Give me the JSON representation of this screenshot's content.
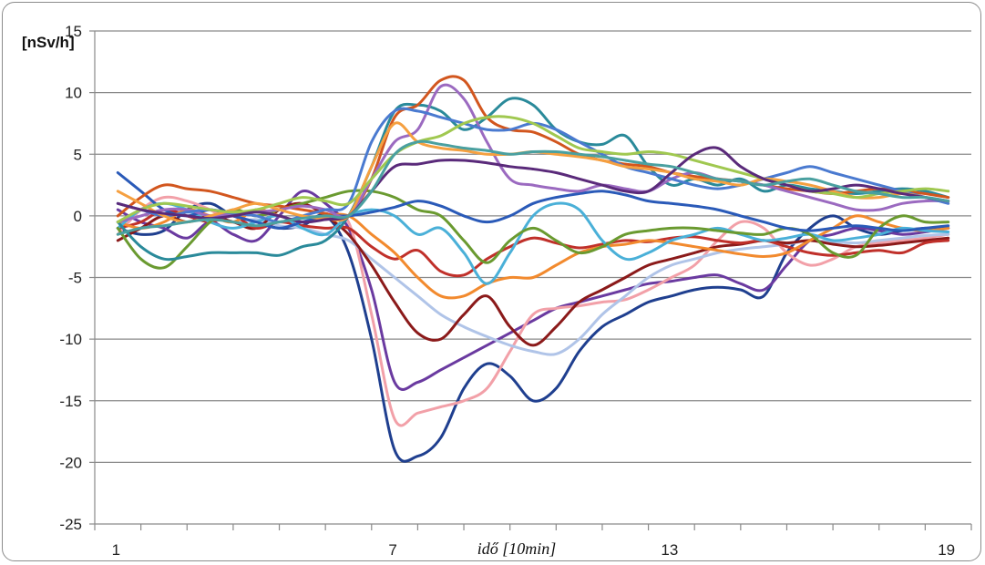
{
  "chart_data": {
    "type": "line",
    "title": "",
    "ylabel": "[nSv/h]",
    "xlabel": "idő [10min]",
    "ylim": [
      -25,
      15
    ],
    "yticks": [
      15,
      10,
      5,
      0,
      -5,
      -10,
      -15,
      -20,
      -25
    ],
    "xlim": [
      1,
      19
    ],
    "xtick_labels": [
      {
        "x": 1,
        "label": "1"
      },
      {
        "x": 7,
        "label": "7"
      },
      {
        "x": 13,
        "label": "13"
      },
      {
        "x": 19,
        "label": "19"
      }
    ],
    "grid": true,
    "legend": "none",
    "x": [
      1,
      1.5,
      2,
      2.5,
      3,
      3.5,
      4,
      4.5,
      5,
      5.5,
      6,
      6.5,
      7,
      7.5,
      8,
      8.5,
      9,
      9.5,
      10,
      10.5,
      11,
      11.5,
      12,
      12.5,
      13,
      13.5,
      14,
      14.5,
      15,
      15.5,
      16,
      16.5,
      17,
      17.5,
      18,
      18.5,
      19
    ],
    "series": [
      {
        "color": "#1f3f8f",
        "values": [
          -1,
          -1.5,
          -1.2,
          0.5,
          1,
          0,
          -0.5,
          -1,
          -0.8,
          0,
          -3,
          -10,
          -19,
          -19.5,
          -18,
          -14,
          -12,
          -13,
          -15,
          -14,
          -11,
          -9,
          -8,
          -7,
          -6.5,
          -6,
          -5.8,
          -6,
          -6.5,
          -3,
          -1,
          0,
          -1,
          -1.5,
          -1.2,
          -1,
          -1
        ]
      },
      {
        "color": "#6a3aa0",
        "values": [
          0.5,
          -0.5,
          -1,
          -1.8,
          -0.5,
          -1.5,
          -2,
          0,
          2,
          1,
          -1,
          -6,
          -13.5,
          -13.5,
          -12.5,
          -11.5,
          -10.5,
          -9.5,
          -8.5,
          -7.5,
          -7,
          -6.5,
          -6,
          -5.5,
          -5.3,
          -5,
          -4.8,
          -5.5,
          -6,
          -4,
          -2,
          -1.5,
          -1,
          -1.2,
          -1.5,
          -1.3,
          -1
        ]
      },
      {
        "color": "#f2a0a8",
        "values": [
          -1.5,
          0.5,
          1.5,
          1.2,
          0.5,
          -0.5,
          0.5,
          0,
          -0.5,
          -0.3,
          -0.5,
          -8,
          -16.5,
          -16,
          -15.5,
          -15,
          -14,
          -11,
          -8,
          -7.5,
          -7.3,
          -7,
          -6.8,
          -6,
          -5,
          -4,
          -2,
          -0.5,
          -1,
          -3,
          -4,
          -3.5,
          -2.5,
          -2.2,
          -2,
          -1.8,
          -1.5
        ]
      },
      {
        "color": "#b0c4e8",
        "values": [
          -0.5,
          0,
          0.5,
          0.3,
          0,
          -0.5,
          -0.3,
          -0.8,
          -1,
          -1.5,
          -2,
          -3.5,
          -5,
          -6.5,
          -8,
          -9,
          -9.8,
          -10.5,
          -11,
          -11.2,
          -10,
          -8,
          -6.5,
          -5,
          -4,
          -3.5,
          -3,
          -2.7,
          -2.5,
          -2.3,
          -2,
          -2.1,
          -2.2,
          -2,
          -1.8,
          -1.6,
          -1.5
        ]
      },
      {
        "color": "#8b1a1a",
        "values": [
          -2,
          -1,
          0,
          -0.5,
          0,
          -0.5,
          -1,
          0.5,
          1,
          0,
          -1.5,
          -4,
          -7,
          -9.5,
          -10,
          -8,
          -6.5,
          -9,
          -10.5,
          -9,
          -7,
          -6,
          -5,
          -4,
          -3.5,
          -3,
          -2.5,
          -2.3,
          -2,
          -2.2,
          -2,
          -2.3,
          -2.5,
          -2.4,
          -2.2,
          -2,
          -1.8
        ]
      },
      {
        "color": "#c0302a",
        "values": [
          -1,
          -0.5,
          0.5,
          0,
          -0.5,
          0,
          -1,
          -0.5,
          -0.8,
          -1,
          -1,
          -2.5,
          -3.5,
          -2.8,
          -4.5,
          -4.8,
          -3.5,
          -2.5,
          -1.8,
          -2.2,
          -2.6,
          -2.3,
          -2,
          -2.1,
          -1.8,
          -1.7,
          -2,
          -2.2,
          -2,
          -2.5,
          -3,
          -3.2,
          -3,
          -2.8,
          -3,
          -2.2,
          -2
        ]
      },
      {
        "color": "#f28a2e",
        "values": [
          -0.5,
          -1,
          -0.5,
          0.5,
          0,
          -0.5,
          0.5,
          0,
          -0.5,
          0,
          0,
          -1.5,
          -3,
          -5,
          -6.5,
          -6.5,
          -5.5,
          -5,
          -5,
          -4,
          -3,
          -2.5,
          -2.3,
          -2,
          -2.2,
          -2.5,
          -2.8,
          -3.1,
          -3.3,
          -3,
          -2,
          -1,
          0,
          -0.5,
          -1,
          -1.2,
          -1
        ]
      },
      {
        "color": "#4ab0d8",
        "values": [
          -1,
          0.5,
          1,
          0.5,
          -0.5,
          -1,
          -0.5,
          0,
          -1,
          -1.5,
          0,
          0.5,
          0,
          -1.5,
          -1,
          -3,
          -5.5,
          -3,
          0,
          1,
          0.5,
          -2,
          -3.5,
          -3,
          -2,
          -1.5,
          -1,
          -1.5,
          -2,
          -1.8,
          -1.5,
          -2,
          -1.8,
          -1.5,
          -1,
          -1.2,
          -1.3
        ]
      },
      {
        "color": "#6a9a30",
        "values": [
          -1,
          -3.5,
          -4.2,
          -2.5,
          -0.5,
          0.5,
          0,
          0.5,
          1,
          1.5,
          2,
          2,
          1.5,
          0.5,
          0,
          -2,
          -3.8,
          -2,
          -1,
          -2,
          -3,
          -2.5,
          -1.5,
          -1.2,
          -1,
          -1,
          -1.2,
          -1.4,
          -1.5,
          -1,
          -1.5,
          -3,
          -3.2,
          -1,
          0,
          -0.5,
          -0.5
        ]
      },
      {
        "color": "#2a5ab8",
        "values": [
          3.5,
          2,
          0.5,
          0,
          0.5,
          0,
          -0.5,
          -1,
          -0.5,
          0,
          0,
          0.3,
          0.7,
          1.2,
          0.8,
          0,
          -0.5,
          0,
          1,
          1.5,
          1.8,
          2,
          1.7,
          1.2,
          1,
          0.8,
          0.5,
          0,
          -0.5,
          -1,
          -1.2,
          -1,
          -0.8,
          -1,
          -1.2,
          -1,
          -0.8
        ]
      },
      {
        "color": "#2a8a9a",
        "values": [
          -0.5,
          -2.5,
          -3.5,
          -3.3,
          -3,
          -3,
          -3,
          -3.2,
          -2.5,
          -2,
          0,
          4,
          8.5,
          9,
          8.5,
          7,
          8,
          9.5,
          9,
          7,
          6,
          5.8,
          6.5,
          4,
          2.5,
          3,
          2.5,
          3,
          2,
          2.5,
          2.2,
          2,
          1.8,
          2,
          2.2,
          2,
          1.5
        ]
      },
      {
        "color": "#d2561e",
        "values": [
          0,
          1.5,
          2.5,
          2.2,
          2,
          1.5,
          1,
          0.8,
          0.5,
          0.2,
          0,
          3,
          8,
          9,
          11,
          11,
          8,
          7,
          6.8,
          6,
          5,
          4.5,
          4.2,
          4,
          3.5,
          3.2,
          3,
          2.8,
          2.5,
          2.2,
          2,
          1.8,
          2,
          2.2,
          2,
          1.8,
          1.5
        ]
      },
      {
        "color": "#9b6ac0",
        "values": [
          -0.5,
          0,
          0.5,
          0.5,
          0,
          0.2,
          0.3,
          0.5,
          0.8,
          0.5,
          0,
          3,
          6,
          7,
          10.5,
          9.5,
          6,
          3,
          2.5,
          2.2,
          2,
          2.5,
          2.2,
          2,
          3,
          3.5,
          3,
          2.8,
          2.5,
          2,
          1.5,
          1,
          0.5,
          0.5,
          1,
          1.2,
          1.2
        ]
      },
      {
        "color": "#4a7ad0",
        "values": [
          1,
          0.5,
          0,
          0.3,
          0.5,
          0.2,
          0,
          -0.5,
          0,
          0.5,
          1,
          6,
          8.5,
          8.5,
          8,
          7.5,
          7,
          7,
          7.5,
          7,
          6,
          5,
          4,
          3.5,
          3,
          2.5,
          2.2,
          2.5,
          3,
          3.5,
          4,
          3.5,
          3,
          2.5,
          2,
          1.5,
          1
        ]
      },
      {
        "color": "#f5a040",
        "values": [
          2,
          1,
          0,
          -0.5,
          0,
          0.5,
          1,
          0.5,
          0,
          -0.2,
          0,
          4,
          7.5,
          6,
          5.5,
          5.3,
          5,
          5,
          5.2,
          5,
          4.8,
          4.5,
          4,
          3.8,
          3.5,
          3,
          2.8,
          2.5,
          3,
          2.8,
          2.5,
          2,
          1.5,
          1.5,
          1.8,
          1.5,
          1.2
        ]
      },
      {
        "color": "#a0c850",
        "values": [
          -0.5,
          0.5,
          1,
          0.8,
          0.5,
          0.3,
          0.5,
          1,
          1.5,
          1.2,
          1,
          3,
          5,
          6,
          6.5,
          7.5,
          8,
          8,
          7.5,
          6.5,
          5.5,
          5.2,
          5,
          5.2,
          5,
          4.5,
          4,
          3.5,
          3,
          2.5,
          2,
          1.8,
          1.5,
          1.8,
          2,
          2.2,
          2
        ]
      },
      {
        "color": "#5a2a7a",
        "values": [
          1,
          0.5,
          0.2,
          0,
          -0.2,
          0,
          0.3,
          0,
          -0.5,
          -0.3,
          0,
          2,
          4,
          4.2,
          4.5,
          4.5,
          4.3,
          4,
          3.8,
          3.5,
          3,
          2.5,
          2,
          2,
          3.5,
          5,
          5.5,
          4,
          3,
          2.5,
          2,
          2.2,
          2.5,
          2.2,
          1.8,
          1.5,
          1.2
        ]
      },
      {
        "color": "#4aa0a0",
        "values": [
          -1.5,
          -1,
          -0.8,
          -0.5,
          -0.3,
          -0.5,
          -0.8,
          -0.5,
          -0.2,
          0,
          0,
          2,
          5,
          6,
          5.8,
          5.5,
          5.3,
          5,
          5.2,
          5.2,
          5,
          4.8,
          4.5,
          4.2,
          4,
          3.5,
          3,
          2.8,
          2.5,
          2.8,
          3,
          2.5,
          2,
          1.8,
          1.5,
          1.5,
          1.2
        ]
      }
    ]
  }
}
